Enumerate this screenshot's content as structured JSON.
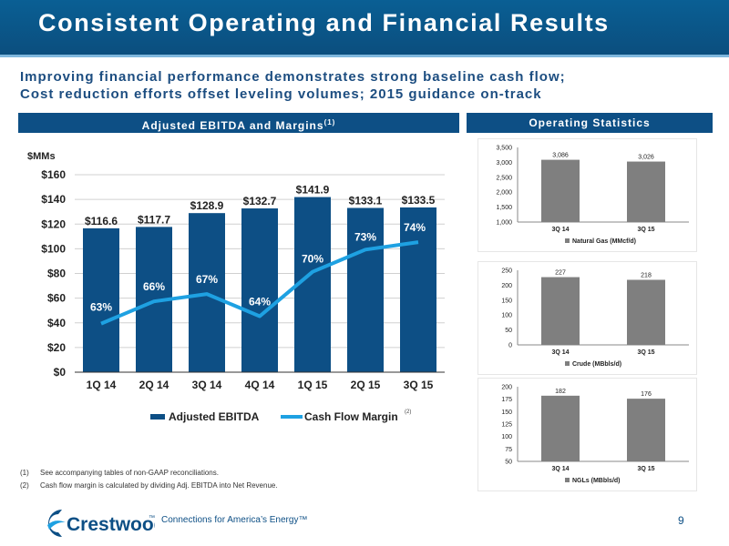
{
  "header": {
    "title": "Consistent Operating and Financial Results"
  },
  "subtitle": {
    "line1": "Improving financial performance demonstrates strong baseline cash flow;",
    "line2": "Cost reduction efforts offset leveling volumes; 2015 guidance on-track"
  },
  "panels": {
    "left_title": "Adjusted EBITDA and Margins",
    "left_title_sup": "(1)",
    "right_title": "Operating Statistics"
  },
  "chart_data": [
    {
      "type": "bar",
      "title": "",
      "ylabel": "$MMs",
      "categories": [
        "1Q 14",
        "2Q 14",
        "3Q 14",
        "4Q 14",
        "1Q 15",
        "2Q 15",
        "3Q 15"
      ],
      "series": [
        {
          "name": "Adjusted EBITDA",
          "type": "bar",
          "color": "#0d4f85",
          "values": [
            116.6,
            117.7,
            128.9,
            132.7,
            141.9,
            133.1,
            133.5
          ],
          "labels": [
            "$116.6",
            "$117.7",
            "$128.9",
            "$132.7",
            "$141.9",
            "$133.1",
            "$133.5"
          ]
        },
        {
          "name": "Cash Flow Margin",
          "type": "line",
          "color": "#1ea1e2",
          "values": [
            63,
            66,
            67,
            64,
            70,
            73,
            74
          ],
          "labels": [
            "63%",
            "66%",
            "67%",
            "64%",
            "70%",
            "73%",
            "74%"
          ],
          "name_sup": "(2)"
        }
      ],
      "ylim": [
        0,
        160
      ],
      "yticks": [
        "$0",
        "$20",
        "$40",
        "$60",
        "$80",
        "$100",
        "$120",
        "$140",
        "$160"
      ],
      "legend": "bottom"
    },
    {
      "type": "bar",
      "categories": [
        "3Q 14",
        "3Q 15"
      ],
      "series": [
        {
          "name": "Natural Gas (MMcf/d)",
          "values": [
            3086,
            3026
          ],
          "labels": [
            "3,086",
            "3,026"
          ]
        }
      ],
      "ylim": [
        1000,
        3500
      ],
      "yticks": [
        "1,000",
        "1,500",
        "2,000",
        "2,500",
        "3,000",
        "3,500"
      ],
      "legend": "bottom"
    },
    {
      "type": "bar",
      "categories": [
        "3Q 14",
        "3Q 15"
      ],
      "series": [
        {
          "name": "Crude (MBbls/d)",
          "values": [
            227,
            218
          ],
          "labels": [
            "227",
            "218"
          ]
        }
      ],
      "ylim": [
        0,
        250
      ],
      "yticks": [
        "0",
        "50",
        "100",
        "150",
        "200",
        "250"
      ],
      "legend": "bottom"
    },
    {
      "type": "bar",
      "categories": [
        "3Q 14",
        "3Q 15"
      ],
      "series": [
        {
          "name": "NGLs (MBbls/d)",
          "values": [
            182,
            176
          ],
          "labels": [
            "182",
            "176"
          ]
        }
      ],
      "ylim": [
        50,
        200
      ],
      "yticks": [
        "50",
        "75",
        "100",
        "125",
        "150",
        "175",
        "200"
      ],
      "legend": "bottom"
    }
  ],
  "footnotes": {
    "n1": "(1)",
    "t1": "See accompanying tables of non-GAAP reconciliations.",
    "n2": "(2)",
    "t2": "Cash flow margin is calculated by dividing Adj. EBITDA into Net Revenue."
  },
  "footer": {
    "logo_text": "Crestwood",
    "logo_tm": "™",
    "tagline": "Connections for America’s Energy™",
    "page": "9"
  },
  "colors": {
    "navy": "#0d4f85",
    "light_blue": "#1ea1e2",
    "gray_bar": "#7f7f7f"
  }
}
